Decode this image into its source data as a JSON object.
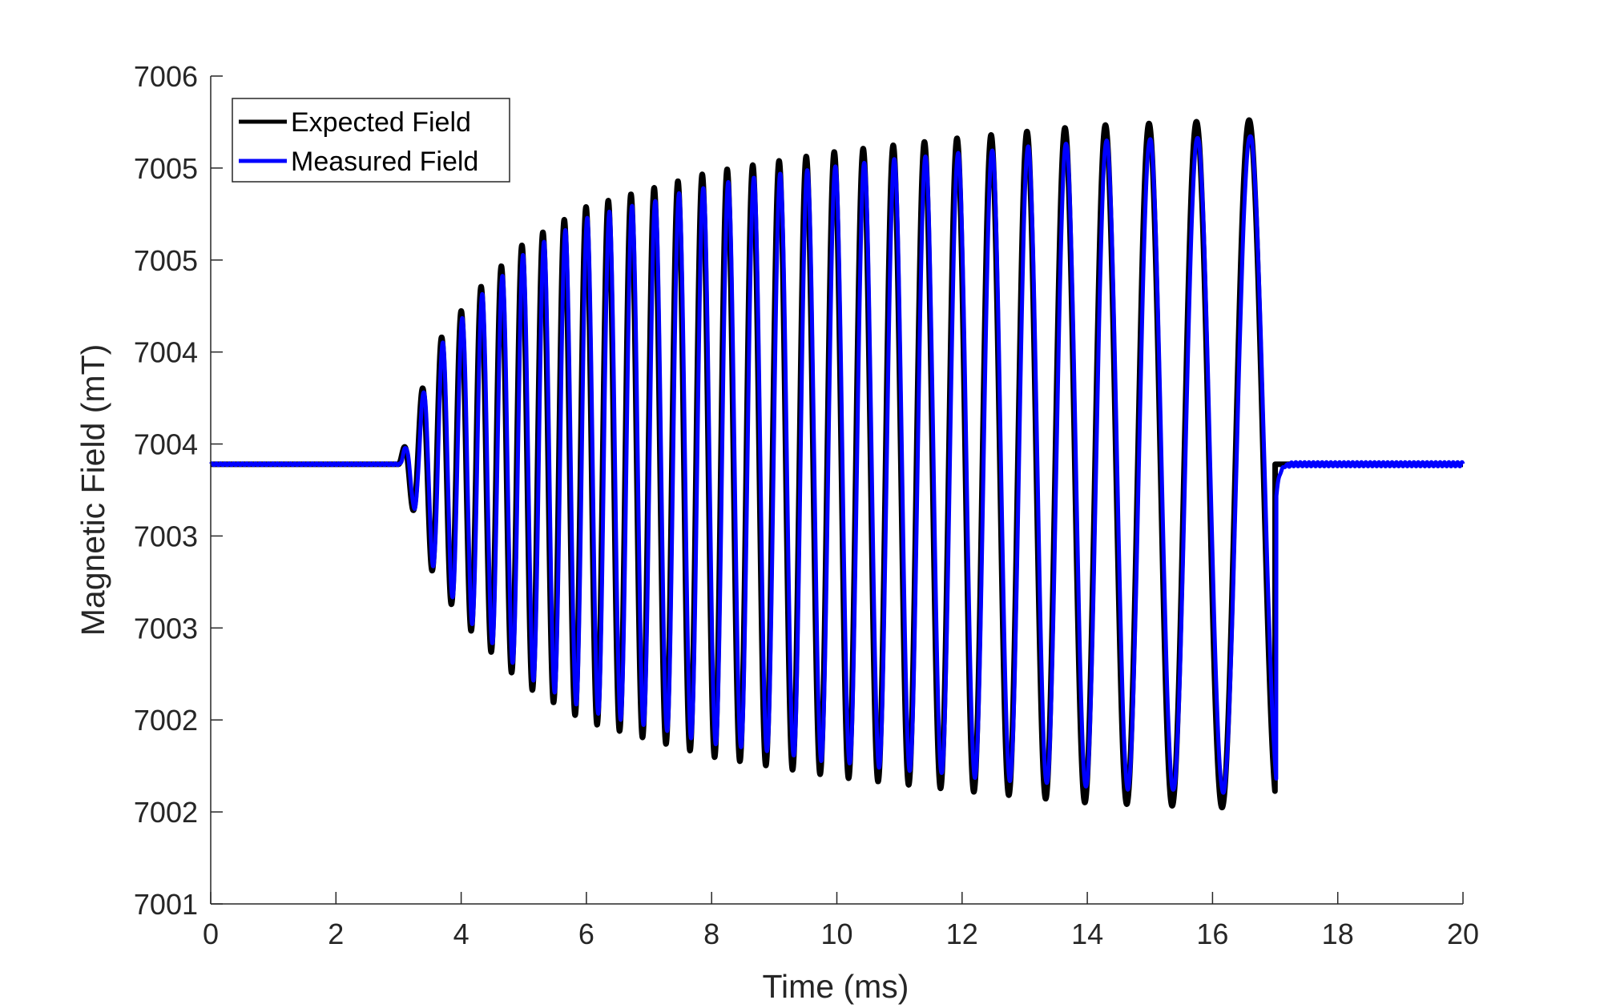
{
  "chart_data": {
    "type": "line",
    "title": "",
    "xlabel": "Time (ms)",
    "ylabel": "Magnetic Field (mT)",
    "xlim": [
      0,
      20
    ],
    "ylim": [
      0,
      9
    ],
    "x_ticks": [
      0,
      2,
      4,
      6,
      8,
      10,
      12,
      14,
      16,
      18,
      20
    ],
    "x_tick_labels": [
      "0",
      "2",
      "4",
      "6",
      "8",
      "10",
      "12",
      "14",
      "16",
      "18",
      "20"
    ],
    "y_ticks": [
      0,
      1,
      2,
      3,
      4,
      5,
      6,
      7,
      8,
      9
    ],
    "y_tick_labels": [
      "7001",
      "7002",
      "7002",
      "7003",
      "7003",
      "7004",
      "7004",
      "7005",
      "7005",
      "7006"
    ],
    "grid": false,
    "legend": {
      "location": "top-left"
    },
    "signal": {
      "baseline": 4.78,
      "start_ms": 3.0,
      "end_ms": 17.0,
      "start_period_ms": 0.3,
      "end_period_ms": 0.95,
      "amplitude_envelope": [
        {
          "t": 3.0,
          "amp": 0.0
        },
        {
          "t": 3.6,
          "amp": 1.3
        },
        {
          "t": 4.2,
          "amp": 1.85
        },
        {
          "t": 5.0,
          "amp": 2.4
        },
        {
          "t": 6.0,
          "amp": 2.8
        },
        {
          "t": 8.0,
          "amp": 3.18
        },
        {
          "t": 10.0,
          "amp": 3.4
        },
        {
          "t": 12.0,
          "amp": 3.55
        },
        {
          "t": 14.0,
          "amp": 3.68
        },
        {
          "t": 16.0,
          "amp": 3.73
        },
        {
          "t": 17.0,
          "amp": 3.75
        }
      ]
    },
    "series": [
      {
        "name": "Expected Field",
        "color": "#000000",
        "amplitude_scale": 1.0,
        "lag_ms": 0.0
      },
      {
        "name": "Measured Field",
        "color": "#0000ff",
        "amplitude_scale": 0.955,
        "lag_ms": 0.018
      }
    ]
  }
}
